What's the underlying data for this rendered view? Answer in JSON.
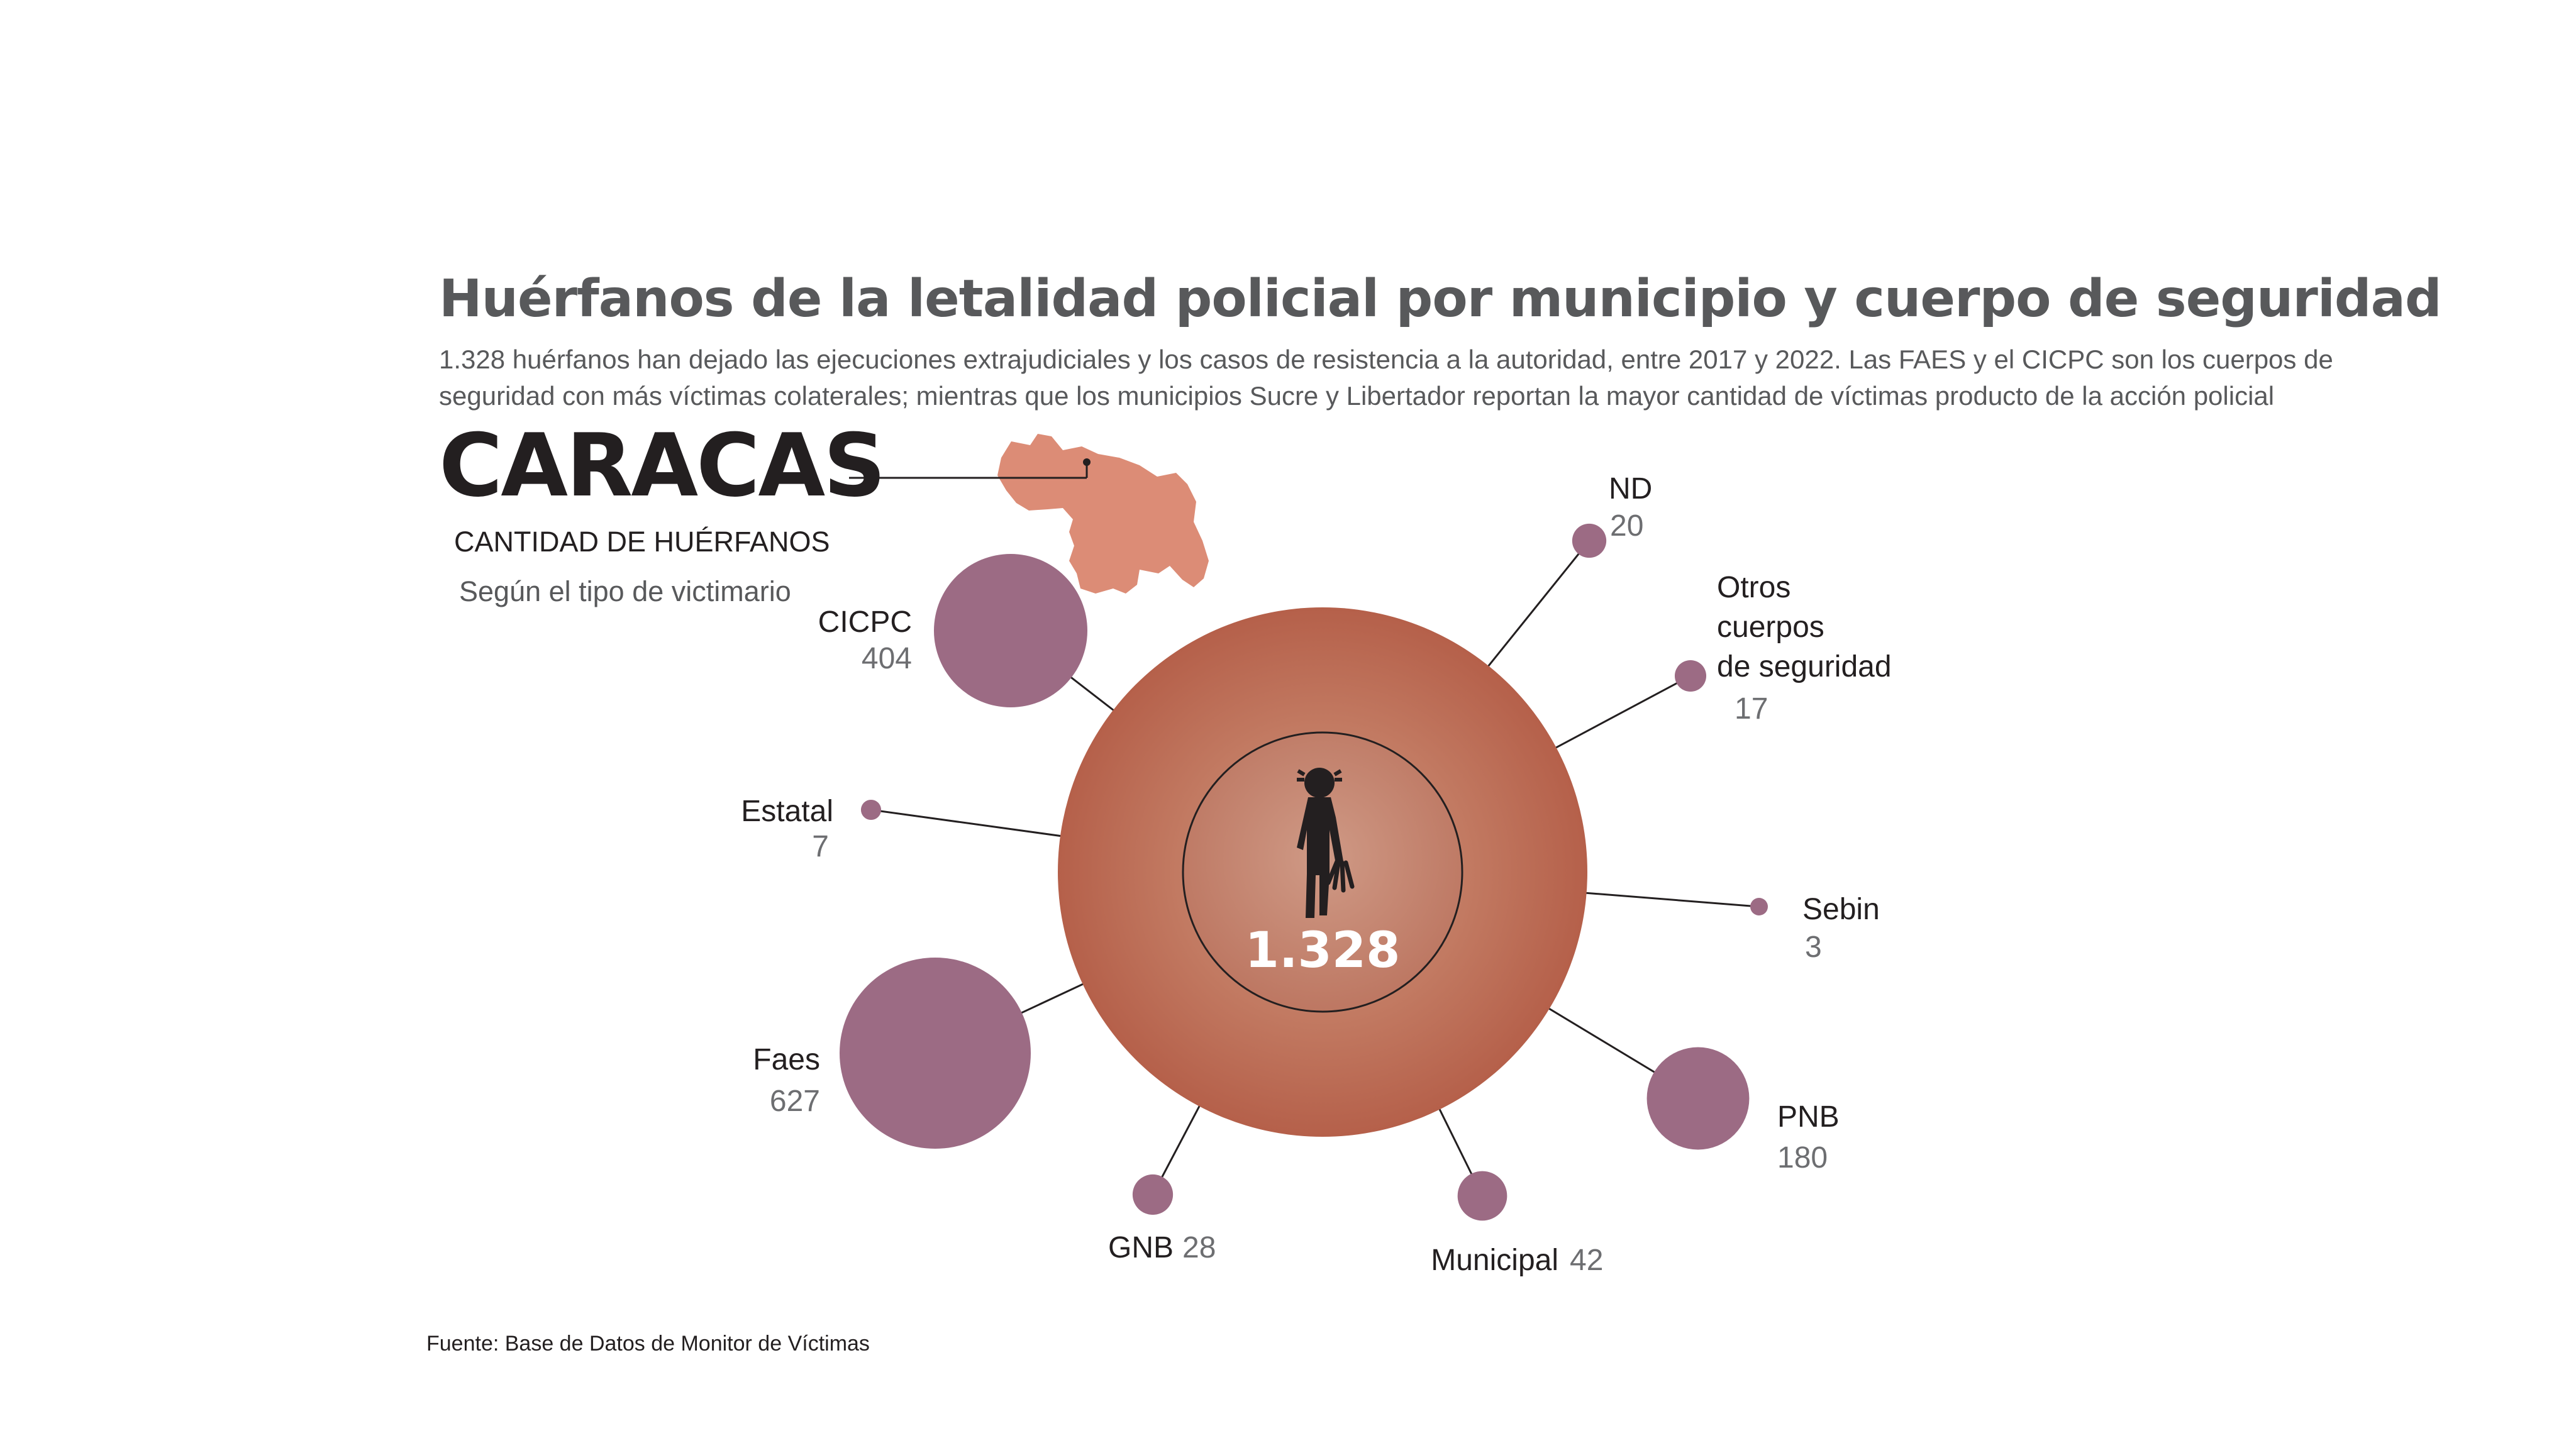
{
  "header": {
    "title": "Huérfanos de la letalidad policial por municipio y cuerpo de seguridad",
    "subtitle_line1": "1.328 huérfanos han dejado las ejecuciones extrajudiciales y los casos de resistencia a la autoridad, entre 2017 y 2022. Las FAES y el CICPC son los cuerpos de",
    "subtitle_line2": "seguridad con más víctimas colaterales; mientras que los municipios Sucre y Libertador reportan la mayor cantidad de víctimas producto de la acción policial"
  },
  "location": {
    "city": "CARACAS",
    "caption": "CANTIDAD DE HUÉRFANOS",
    "subcaption": "Según el tipo de victimario"
  },
  "footer": {
    "source": "Fuente: Base de Datos de Monitor de Víctimas"
  },
  "icons": {
    "figure": "child-silhouette-icon",
    "map": "venezuela-map-icon"
  },
  "colors": {
    "center_outer": "#b5604a",
    "center_inner": "#c8907c",
    "bubble": "#9c6b84",
    "line": "#231f20"
  },
  "chart_data": {
    "type": "bubble",
    "title": "Huérfanos de la letalidad policial por municipio y cuerpo de seguridad",
    "total": {
      "label": "1.328",
      "value": 1328
    },
    "categories": [
      "CICPC",
      "ND",
      "Otros cuerpos de seguridad",
      "Estatal",
      "Sebin",
      "Faes",
      "PNB",
      "GNB",
      "Municipal"
    ],
    "values": [
      404,
      20,
      17,
      7,
      3,
      627,
      180,
      28,
      42
    ],
    "series": [
      {
        "name": "CICPC",
        "label_lines": [
          "CICPC"
        ],
        "value": 404,
        "value_label": "404"
      },
      {
        "name": "ND",
        "label_lines": [
          "ND"
        ],
        "value": 20,
        "value_label": "20"
      },
      {
        "name": "Otros cuerpos de seguridad",
        "label_lines": [
          "Otros",
          "cuerpos",
          "de seguridad"
        ],
        "value": 17,
        "value_label": "17"
      },
      {
        "name": "Estatal",
        "label_lines": [
          "Estatal"
        ],
        "value": 7,
        "value_label": "7"
      },
      {
        "name": "Sebin",
        "label_lines": [
          "Sebin"
        ],
        "value": 3,
        "value_label": "3"
      },
      {
        "name": "Faes",
        "label_lines": [
          "Faes"
        ],
        "value": 627,
        "value_label": "627"
      },
      {
        "name": "PNB",
        "label_lines": [
          "PNB"
        ],
        "value": 180,
        "value_label": "180"
      },
      {
        "name": "GNB",
        "label_lines": [
          "GNB"
        ],
        "value": 28,
        "value_label": "28"
      },
      {
        "name": "Municipal",
        "label_lines": [
          "Municipal"
        ],
        "value": 42,
        "value_label": "42"
      }
    ]
  }
}
